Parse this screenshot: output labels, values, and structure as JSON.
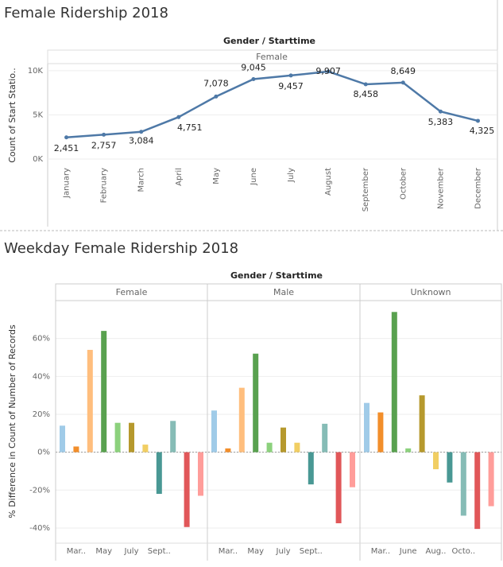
{
  "chart_data": [
    {
      "type": "line",
      "title": "Female Ridership 2018",
      "header": "Gender / Starttime",
      "panel": "Female",
      "y_label": "Count of Start Statio..",
      "categories": [
        "January",
        "February",
        "March",
        "April",
        "May",
        "June",
        "July",
        "August",
        "September",
        "October",
        "November",
        "December"
      ],
      "series": [
        {
          "name": "Female",
          "color": "#4e79a7",
          "values": [
            2451,
            2757,
            3084,
            4751,
            7078,
            9045,
            9457,
            9907,
            8458,
            8649,
            5383,
            4325
          ],
          "value_labels": [
            "2,451",
            "2,757",
            "3,084",
            "4,751",
            "7,078",
            "9,045",
            "9,457",
            "9,907",
            "8,458",
            "8,649",
            "5,383",
            "4,325"
          ]
        }
      ],
      "ylim": [
        -450,
        10800
      ],
      "yticks": [
        {
          "value": 0,
          "label": "0K"
        },
        {
          "value": 5000,
          "label": "5K"
        },
        {
          "value": 10000,
          "label": "10K"
        }
      ],
      "grid": true
    },
    {
      "type": "bar",
      "title": "Weekday Female Ridership 2018",
      "header": "Gender / Starttime",
      "y_label": "% Difference in Count of Number of Records",
      "ylim": [
        -48,
        80
      ],
      "yticks": [
        {
          "value": -40,
          "label": "-40%"
        },
        {
          "value": -20,
          "label": "-20%"
        },
        {
          "value": 0,
          "label": "0%"
        },
        {
          "value": 20,
          "label": "20%"
        },
        {
          "value": 40,
          "label": "40%"
        },
        {
          "value": 60,
          "label": "60%"
        }
      ],
      "grid": true,
      "panels": [
        {
          "name": "Female",
          "categories": [
            null,
            "Mar..",
            null,
            "May",
            null,
            "July",
            null,
            "Sept..",
            null,
            null,
            null
          ],
          "values": [
            14,
            3,
            54,
            64,
            15.5,
            15.5,
            4,
            -22,
            16.5,
            -39.5,
            -23
          ],
          "colors": [
            "#a0cbe8",
            "#f28e2b",
            "#ffbe7d",
            "#59a14f",
            "#8cd17d",
            "#b6992d",
            "#f1ce63",
            "#499894",
            "#86bcb6",
            "#e15759",
            "#ff9d9a"
          ]
        },
        {
          "name": "Male",
          "categories": [
            null,
            "Mar..",
            null,
            "May",
            null,
            "July",
            null,
            "Sept..",
            null,
            null,
            null
          ],
          "values": [
            22,
            2,
            34,
            52,
            5,
            13,
            5,
            -17,
            15,
            -37.5,
            -18.5
          ],
          "colors": [
            "#a0cbe8",
            "#f28e2b",
            "#ffbe7d",
            "#59a14f",
            "#8cd17d",
            "#b6992d",
            "#f1ce63",
            "#499894",
            "#86bcb6",
            "#e15759",
            "#ff9d9a"
          ]
        },
        {
          "name": "Unknown",
          "categories": [
            null,
            "Mar..",
            null,
            "June",
            null,
            "Aug..",
            null,
            "Octo..",
            null,
            null
          ],
          "values": [
            26,
            21,
            74,
            2,
            30,
            -9,
            -16,
            -33.5,
            -40.5,
            -28.5
          ],
          "colors": [
            "#a0cbe8",
            "#f28e2b",
            "#59a14f",
            "#8cd17d",
            "#b6992d",
            "#f1ce63",
            "#499894",
            "#86bcb6",
            "#e15759",
            "#ff9d9a"
          ]
        }
      ]
    }
  ]
}
